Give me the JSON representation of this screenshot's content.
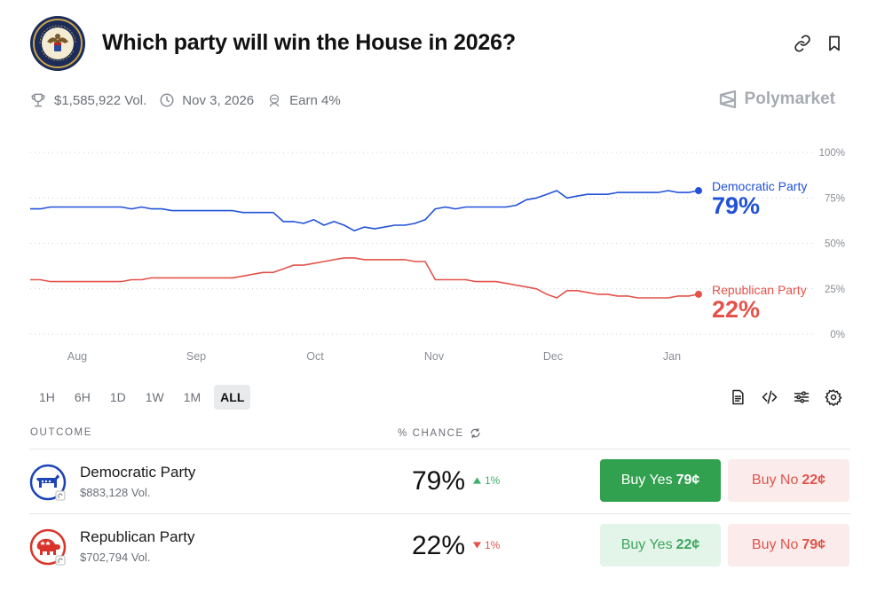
{
  "header": {
    "title": "Which party will win the House in 2026?",
    "seal_icon": "us-house-seal-icon",
    "link_icon": "link-icon",
    "bookmark_icon": "bookmark-icon"
  },
  "meta": {
    "volume": "$1,585,922 Vol.",
    "end_date": "Nov 3, 2026",
    "earn": "Earn 4%",
    "brand": "Polymarket"
  },
  "chart_data": {
    "type": "line",
    "x_ticks": [
      "Aug",
      "Sep",
      "Oct",
      "Nov",
      "Dec",
      "Jan"
    ],
    "y_ticks": [
      "100%",
      "75%",
      "50%",
      "25%",
      "0%"
    ],
    "ylim": [
      0,
      100
    ],
    "grid": true,
    "series": [
      {
        "name": "Democratic Party",
        "color": "#2151d8",
        "current_label": "79%",
        "values": [
          69,
          69,
          70,
          70,
          70,
          70,
          70,
          70,
          70,
          70,
          69,
          70,
          69,
          69,
          68,
          68,
          68,
          68,
          68,
          68,
          68,
          67,
          67,
          67,
          67,
          62,
          62,
          61,
          63,
          60,
          62,
          60,
          57,
          59,
          58,
          59,
          60,
          60,
          61,
          63,
          69,
          70,
          69,
          70,
          70,
          70,
          70,
          70,
          71,
          74,
          75,
          77,
          79,
          75,
          76,
          77,
          77,
          77,
          78,
          78,
          78,
          78,
          78,
          79,
          78,
          78,
          79
        ]
      },
      {
        "name": "Republican Party",
        "color": "#e4524a",
        "current_label": "22%",
        "values": [
          30,
          30,
          29,
          29,
          29,
          29,
          29,
          29,
          29,
          29,
          30,
          30,
          31,
          31,
          31,
          31,
          31,
          31,
          31,
          31,
          31,
          32,
          33,
          34,
          34,
          36,
          38,
          38,
          39,
          40,
          41,
          42,
          42,
          41,
          41,
          41,
          41,
          41,
          40,
          40,
          30,
          30,
          30,
          30,
          29,
          29,
          29,
          28,
          27,
          26,
          25,
          22,
          20,
          24,
          24,
          23,
          22,
          22,
          21,
          21,
          20,
          20,
          20,
          20,
          21,
          21,
          22
        ]
      }
    ]
  },
  "ranges": [
    "1H",
    "6H",
    "1D",
    "1W",
    "1M",
    "ALL"
  ],
  "active_range": "ALL",
  "tools": {
    "doc_icon": "document-icon",
    "embed_icon": "code-icon",
    "filter_icon": "sliders-icon",
    "settings_icon": "gear-icon"
  },
  "table": {
    "col_outcome": "OUTCOME",
    "col_chance": "% CHANCE",
    "refresh_icon": "refresh-icon",
    "rows": [
      {
        "name": "Democratic Party",
        "icon": "democrat-donkey-icon",
        "volume": "$883,128 Vol.",
        "chance": "79%",
        "delta": "1%",
        "delta_dir": "up",
        "yes_label": "Buy Yes",
        "yes_price": "79¢",
        "no_label": "Buy No",
        "no_price": "22¢"
      },
      {
        "name": "Republican Party",
        "icon": "republican-elephant-icon",
        "volume": "$702,794 Vol.",
        "chance": "22%",
        "delta": "1%",
        "delta_dir": "down",
        "yes_label": "Buy Yes",
        "yes_price": "22¢",
        "no_label": "Buy No",
        "no_price": "79¢"
      }
    ]
  }
}
